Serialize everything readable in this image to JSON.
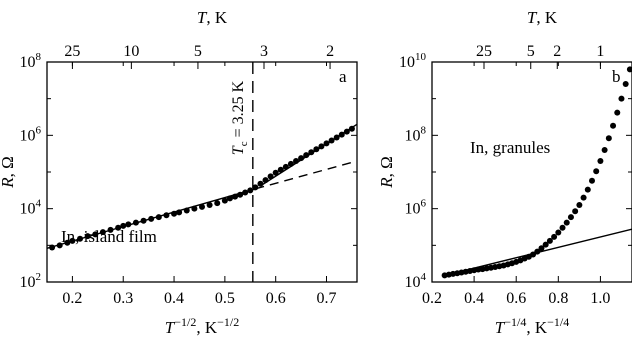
{
  "chart_data": [
    {
      "id": "a",
      "type": "scatter",
      "panel_label": "a",
      "x_label": {
        "sym": "T",
        "sup": "−1/2",
        "unit": ", K",
        "unit_sup": "−1/2"
      },
      "y_label": {
        "sym": "R",
        "unit": ", Ω"
      },
      "top_label": {
        "sym": "T",
        "unit": ", K"
      },
      "xlim": [
        0.15,
        0.76
      ],
      "ylim_log10": [
        2,
        8
      ],
      "log_y": true,
      "x_ticks": [
        "0.2",
        "0.3",
        "0.4",
        "0.5",
        "0.6",
        "0.7"
      ],
      "y_ticks": [
        {
          "exp": "2"
        },
        {
          "exp": "4"
        },
        {
          "exp": "6"
        },
        {
          "exp": "8"
        }
      ],
      "top_ticks": [
        "25",
        "10",
        "5",
        "3",
        "2"
      ],
      "top_tick_temps_K": [
        25,
        10,
        5,
        3,
        2
      ],
      "annotation": "In, island film",
      "tc_label": {
        "sym": "T",
        "sub": "c",
        "text": " = 3.25 K"
      },
      "tc_x": 0.555,
      "points_x": [
        0.16,
        0.175,
        0.19,
        0.2,
        0.215,
        0.23,
        0.245,
        0.26,
        0.275,
        0.29,
        0.3,
        0.31,
        0.325,
        0.34,
        0.355,
        0.37,
        0.385,
        0.4,
        0.41,
        0.425,
        0.44,
        0.455,
        0.47,
        0.485,
        0.5,
        0.51,
        0.52,
        0.53,
        0.54,
        0.55,
        0.56,
        0.57,
        0.58,
        0.59,
        0.6,
        0.61,
        0.62,
        0.63,
        0.64,
        0.65,
        0.66,
        0.67,
        0.68,
        0.69,
        0.7,
        0.71,
        0.72,
        0.73,
        0.74,
        0.75
      ],
      "points_log10R": [
        2.94,
        3.0,
        3.07,
        3.12,
        3.18,
        3.25,
        3.3,
        3.36,
        3.42,
        3.48,
        3.53,
        3.57,
        3.62,
        3.67,
        3.72,
        3.77,
        3.82,
        3.86,
        3.9,
        3.95,
        4.0,
        4.05,
        4.1,
        4.15,
        4.22,
        4.28,
        4.33,
        4.38,
        4.44,
        4.5,
        4.58,
        4.68,
        4.78,
        4.88,
        4.98,
        5.06,
        5.14,
        5.22,
        5.3,
        5.38,
        5.46,
        5.54,
        5.62,
        5.7,
        5.78,
        5.86,
        5.94,
        6.02,
        6.1,
        6.18
      ],
      "fit_lines": [
        {
          "style": "solid",
          "x": [
            0.15,
            0.56
          ],
          "log10R": [
            2.92,
            4.54
          ]
        },
        {
          "style": "dashed",
          "x": [
            0.56,
            0.76
          ],
          "log10R": [
            4.54,
            5.3
          ]
        },
        {
          "style": "solid",
          "x": [
            0.57,
            0.76
          ],
          "log10R": [
            4.62,
            6.3
          ]
        }
      ]
    },
    {
      "id": "b",
      "type": "scatter",
      "panel_label": "b",
      "x_label": {
        "sym": "T",
        "sup": "−1/4",
        "unit": ", K",
        "unit_sup": "−1/4"
      },
      "y_label": {
        "sym": "R",
        "unit": ", Ω"
      },
      "top_label": {
        "sym": "T",
        "unit": ", K"
      },
      "xlim": [
        0.2,
        1.15
      ],
      "ylim_log10": [
        4,
        10
      ],
      "log_y": true,
      "x_ticks": [
        "0.2",
        "0.4",
        "0.6",
        "0.8",
        "1.0"
      ],
      "y_ticks": [
        {
          "exp": "4"
        },
        {
          "exp": "6"
        },
        {
          "exp": "8"
        },
        {
          "exp": "10"
        }
      ],
      "top_ticks": [
        "25",
        "5",
        "2",
        "1"
      ],
      "top_tick_temps_K": [
        25,
        5,
        2,
        1
      ],
      "annotation": "In, granules",
      "points_x": [
        0.26,
        0.28,
        0.3,
        0.32,
        0.34,
        0.36,
        0.38,
        0.4,
        0.42,
        0.44,
        0.46,
        0.48,
        0.5,
        0.52,
        0.54,
        0.56,
        0.58,
        0.6,
        0.62,
        0.64,
        0.66,
        0.68,
        0.7,
        0.72,
        0.74,
        0.76,
        0.78,
        0.8,
        0.82,
        0.84,
        0.86,
        0.88,
        0.9,
        0.92,
        0.94,
        0.96,
        0.98,
        1.0,
        1.02,
        1.04,
        1.06,
        1.08,
        1.1,
        1.12,
        1.14
      ],
      "points_log10R": [
        4.18,
        4.2,
        4.22,
        4.24,
        4.26,
        4.28,
        4.3,
        4.32,
        4.34,
        4.35,
        4.37,
        4.39,
        4.41,
        4.43,
        4.45,
        4.48,
        4.51,
        4.55,
        4.59,
        4.64,
        4.69,
        4.75,
        4.83,
        4.92,
        5.02,
        5.12,
        5.23,
        5.35,
        5.48,
        5.62,
        5.77,
        5.93,
        6.1,
        6.3,
        6.52,
        6.76,
        7.02,
        7.3,
        7.6,
        7.92,
        8.26,
        8.62,
        9.0,
        9.4,
        9.8
      ],
      "fit_lines": [
        {
          "style": "solid",
          "x": [
            0.26,
            1.15
          ],
          "log10R": [
            4.18,
            5.44
          ]
        }
      ]
    }
  ]
}
